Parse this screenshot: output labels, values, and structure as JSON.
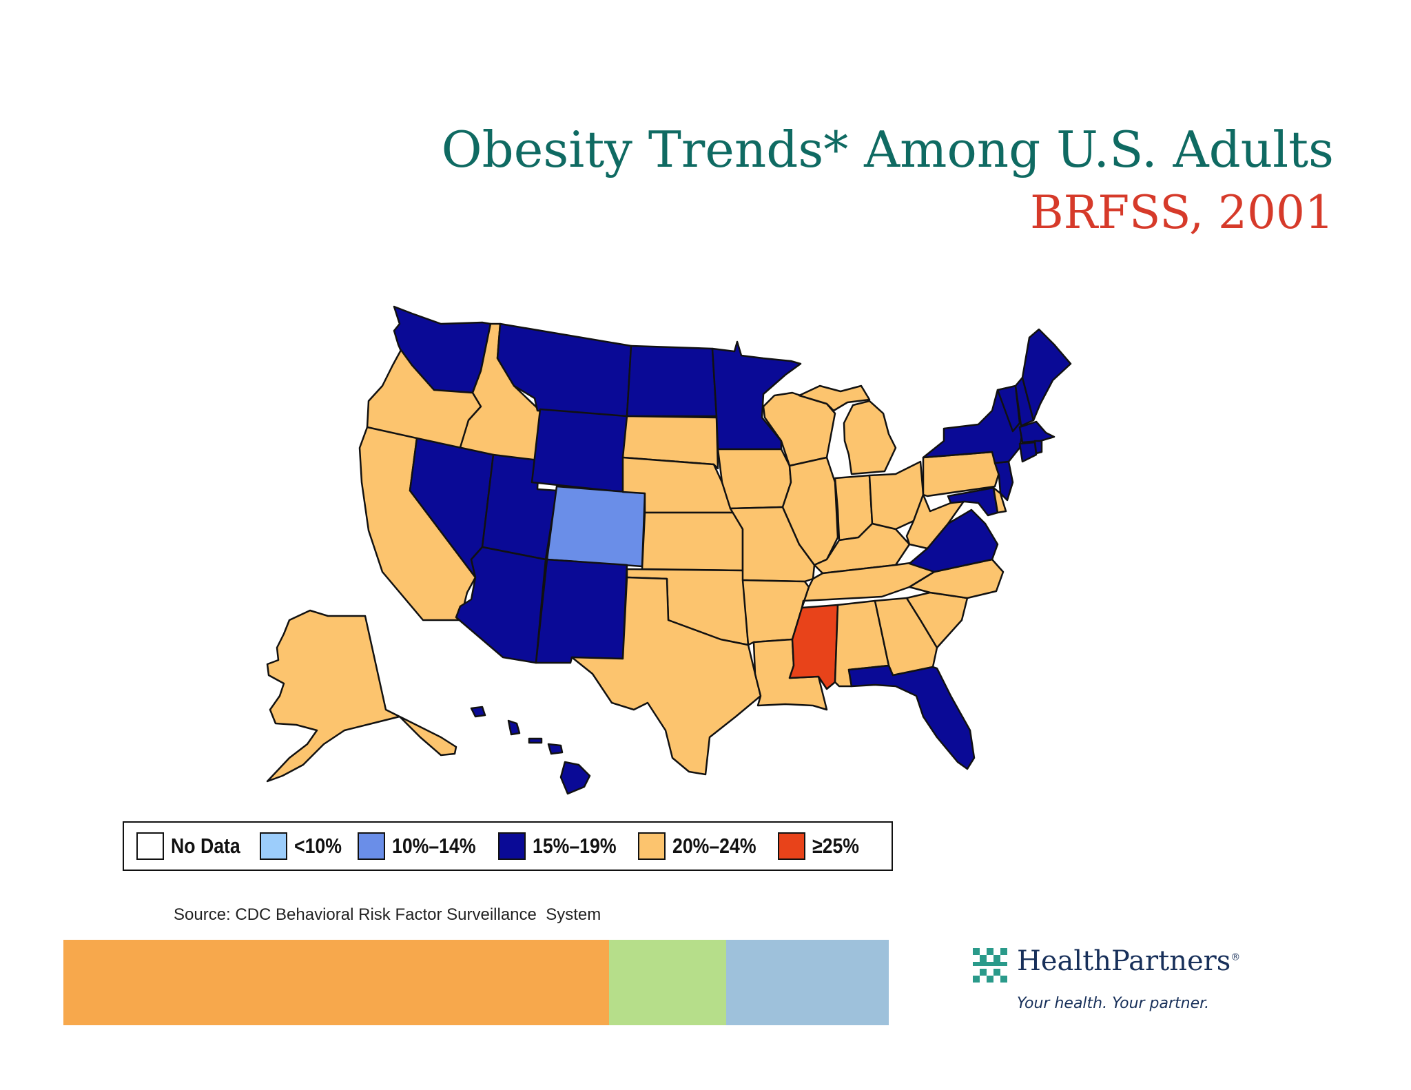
{
  "title": {
    "line1": "Obesity Trends* Among U.S. Adults",
    "line2": "BRFSS, 2001"
  },
  "colors": {
    "title_line1": "#0f6a62",
    "title_line2": "#d63a2a",
    "outline": "#111111",
    "bar_orange": "#f7a84c",
    "bar_green": "#b6de8a",
    "bar_blue": "#9ec1db"
  },
  "legend": [
    {
      "label": "No Data",
      "color": "#ffffff"
    },
    {
      "label": "<10%",
      "color": "#9ccdfb"
    },
    {
      "label": "10%–14%",
      "color": "#6a8ee8"
    },
    {
      "label": "15%–19%",
      "color": "#0a0a96"
    },
    {
      "label": "20%–24%",
      "color": "#fcc46e"
    },
    {
      "label": "≥25%",
      "color": "#e8431a"
    }
  ],
  "map": {
    "states": [
      {
        "name": "Washington",
        "category": "15%–19%"
      },
      {
        "name": "Oregon",
        "category": "20%–24%"
      },
      {
        "name": "California",
        "category": "20%–24%"
      },
      {
        "name": "Idaho",
        "category": "20%–24%"
      },
      {
        "name": "Nevada",
        "category": "15%–19%"
      },
      {
        "name": "Utah",
        "category": "15%–19%"
      },
      {
        "name": "Arizona",
        "category": "15%–19%"
      },
      {
        "name": "Montana",
        "category": "15%–19%"
      },
      {
        "name": "Wyoming",
        "category": "15%–19%"
      },
      {
        "name": "Colorado",
        "category": "10%–14%"
      },
      {
        "name": "New Mexico",
        "category": "15%–19%"
      },
      {
        "name": "North Dakota",
        "category": "15%–19%"
      },
      {
        "name": "South Dakota",
        "category": "20%–24%"
      },
      {
        "name": "Nebraska",
        "category": "20%–24%"
      },
      {
        "name": "Kansas",
        "category": "20%–24%"
      },
      {
        "name": "Oklahoma",
        "category": "20%–24%"
      },
      {
        "name": "Texas",
        "category": "20%–24%"
      },
      {
        "name": "Minnesota",
        "category": "15%–19%"
      },
      {
        "name": "Iowa",
        "category": "20%–24%"
      },
      {
        "name": "Missouri",
        "category": "20%–24%"
      },
      {
        "name": "Arkansas",
        "category": "20%–24%"
      },
      {
        "name": "Louisiana",
        "category": "20%–24%"
      },
      {
        "name": "Wisconsin",
        "category": "20%–24%"
      },
      {
        "name": "Illinois",
        "category": "20%–24%"
      },
      {
        "name": "Michigan",
        "category": "20%–24%"
      },
      {
        "name": "Indiana",
        "category": "20%–24%"
      },
      {
        "name": "Ohio",
        "category": "20%–24%"
      },
      {
        "name": "Kentucky",
        "category": "20%–24%"
      },
      {
        "name": "Tennessee",
        "category": "20%–24%"
      },
      {
        "name": "Mississippi",
        "category": "≥25%"
      },
      {
        "name": "Alabama",
        "category": "20%–24%"
      },
      {
        "name": "Georgia",
        "category": "20%–24%"
      },
      {
        "name": "Florida",
        "category": "15%–19%"
      },
      {
        "name": "South Carolina",
        "category": "20%–24%"
      },
      {
        "name": "North Carolina",
        "category": "20%–24%"
      },
      {
        "name": "Virginia",
        "category": "15%–19%"
      },
      {
        "name": "West Virginia",
        "category": "20%–24%"
      },
      {
        "name": "Maryland",
        "category": "15%–19%"
      },
      {
        "name": "Delaware",
        "category": "20%–24%"
      },
      {
        "name": "Pennsylvania",
        "category": "20%–24%"
      },
      {
        "name": "New Jersey",
        "category": "15%–19%"
      },
      {
        "name": "New York",
        "category": "15%–19%"
      },
      {
        "name": "Connecticut",
        "category": "15%–19%"
      },
      {
        "name": "Rhode Island",
        "category": "15%–19%"
      },
      {
        "name": "Massachusetts",
        "category": "15%–19%"
      },
      {
        "name": "Vermont",
        "category": "15%–19%"
      },
      {
        "name": "New Hampshire",
        "category": "15%–19%"
      },
      {
        "name": "Maine",
        "category": "15%–19%"
      },
      {
        "name": "Alaska",
        "category": "20%–24%"
      },
      {
        "name": "Hawaii",
        "category": "15%–19%"
      }
    ]
  },
  "source": "Source: CDC Behavioral Risk Factor Surveillance  System",
  "logo": {
    "name": "HealthPartners",
    "registered": "®",
    "tagline": "Your health. Your partner.",
    "icon": "healthpartners-grid-icon"
  }
}
